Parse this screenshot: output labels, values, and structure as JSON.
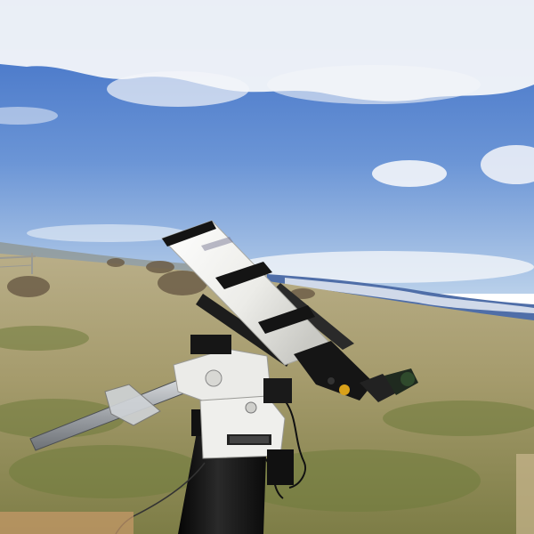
{
  "scene": {
    "subject": "telescope-on-equatorial-mount",
    "colors": {
      "sky_top": "#3d6fc6",
      "sky_bottom": "#b4cdea",
      "cloud": "#f2f4f8",
      "mountain": "#4a6aa8",
      "snow": "#e8eef6",
      "field_far": "#b7ad86",
      "field_near": "#8c8a55",
      "grass_green": "#6b7d3a",
      "tube_white": "#f3f3f0",
      "strap_black": "#161616",
      "mount_white": "#e9e9e6",
      "pier_black": "#141414",
      "bar_silver": "#a9adb2",
      "accent_yellow": "#d9a11a"
    }
  }
}
